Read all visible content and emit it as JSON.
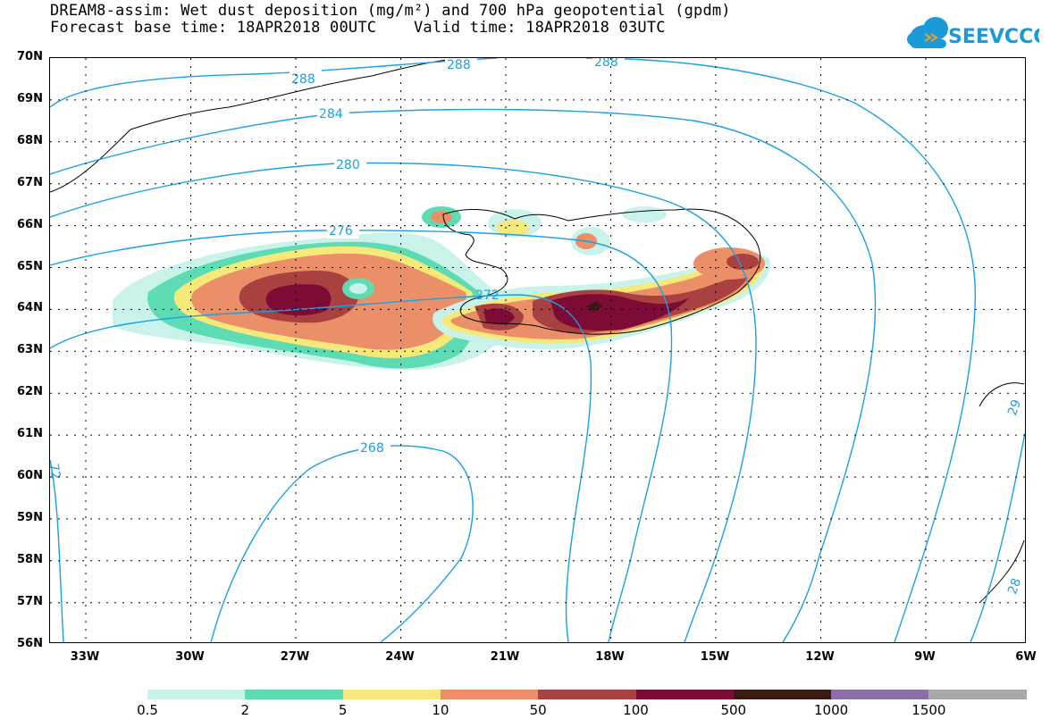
{
  "title": {
    "line1": "DREAM8-assim: Wet dust deposition (mg/m²) and 700 hPa geopotential (gpdm)",
    "line2": "Forecast base time: 18APR2018 00UTC    Valid time: 18APR2018 03UTC"
  },
  "logo": {
    "text": "SEEVCCC",
    "icon": "cloud-icon",
    "color": "#1a9ad6"
  },
  "map": {
    "lat_labels": [
      "70N",
      "69N",
      "68N",
      "67N",
      "66N",
      "65N",
      "64N",
      "63N",
      "62N",
      "61N",
      "60N",
      "59N",
      "58N",
      "57N",
      "56N"
    ],
    "lon_labels": [
      "33W",
      "30W",
      "27W",
      "24W",
      "21W",
      "18W",
      "15W",
      "12W",
      "9W",
      "6W"
    ],
    "contour_color": "#1aa0e6",
    "contour_labels": [
      "288",
      "288",
      "288",
      "284",
      "280",
      "276",
      "272",
      "268",
      "72",
      "29",
      "28"
    ]
  },
  "colorbar": {
    "colors": [
      "#c8f2ea",
      "#5ddcb4",
      "#f6e97a",
      "#eb8f68",
      "#a8413f",
      "#7e0b35",
      "#3a1a12",
      "#8b6fa8",
      "#a8a8a8"
    ],
    "labels": [
      "0.5",
      "2",
      "5",
      "10",
      "50",
      "100",
      "500",
      "1000",
      "1500"
    ]
  }
}
